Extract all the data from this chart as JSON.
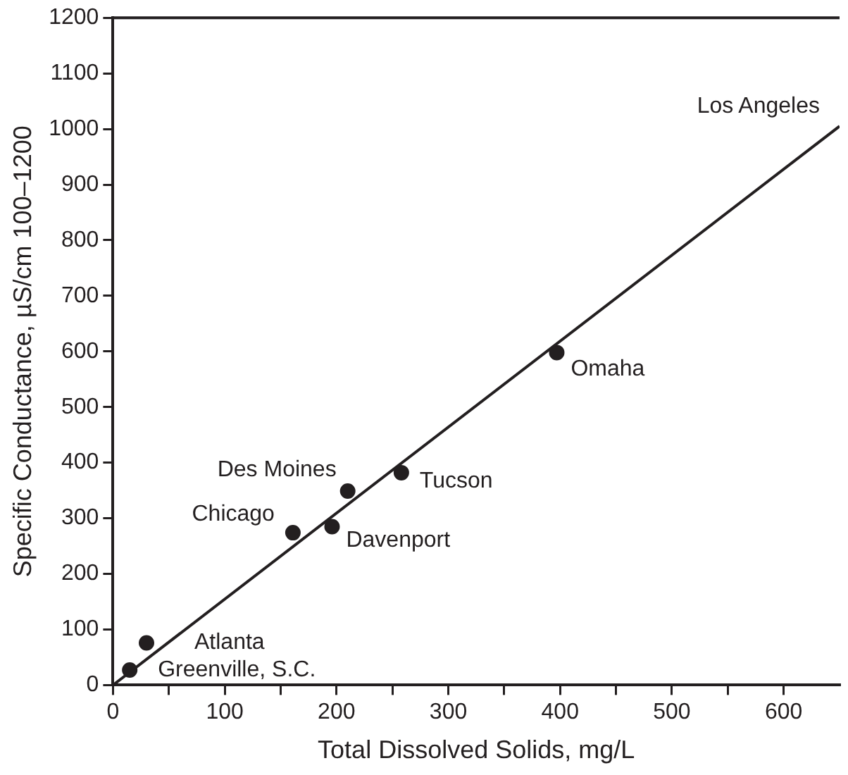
{
  "chart_data": {
    "type": "scatter",
    "xlabel": "Total Dissolved Solids, mg/L",
    "ylabel": "Specific Conductance, µS/cm 100–1200",
    "x": [
      15,
      30,
      161,
      196,
      210,
      258,
      397
    ],
    "series": [
      {
        "color": "#231f20",
        "marker": "circle",
        "values": [
          27,
          76,
          274,
          285,
          349,
          382,
          598
        ]
      },
      {
        "type": "line",
        "color": "#231f20",
        "line_style": "solid",
        "x": [
          0,
          650
        ],
        "values": [
          0,
          1005
        ]
      }
    ],
    "xlim": [
      0,
      650
    ],
    "xticks": [
      0,
      {
        "value": 50,
        "label": null
      },
      100,
      {
        "value": 150,
        "label": null
      },
      200,
      {
        "value": 250,
        "label": null
      },
      300,
      {
        "value": 350,
        "label": null
      },
      400,
      {
        "value": 450,
        "label": null
      },
      500,
      {
        "value": 550,
        "label": null
      },
      600
    ],
    "ylim": [
      0,
      1200
    ],
    "yticks": [
      0,
      100,
      200,
      300,
      400,
      500,
      600,
      700,
      800,
      900,
      1000,
      1100,
      1200
    ],
    "grid": false,
    "legend": false,
    "annotations": [
      {
        "text": "Greenville, S.C.",
        "x": 15,
        "y": 27
      },
      {
        "text": "Atlanta",
        "x": 30,
        "y": 76
      },
      {
        "text": "Chicago",
        "x": 161,
        "y": 274
      },
      {
        "text": "Des Moines",
        "x": 210,
        "y": 349
      },
      {
        "text": "Davenport",
        "x": 196,
        "y": 285
      },
      {
        "text": "Tucson",
        "x": 258,
        "y": 382
      },
      {
        "text": "Omaha",
        "x": 397,
        "y": 598
      },
      {
        "text": "Los Angeles",
        "x": 650,
        "y": 1005
      }
    ]
  }
}
